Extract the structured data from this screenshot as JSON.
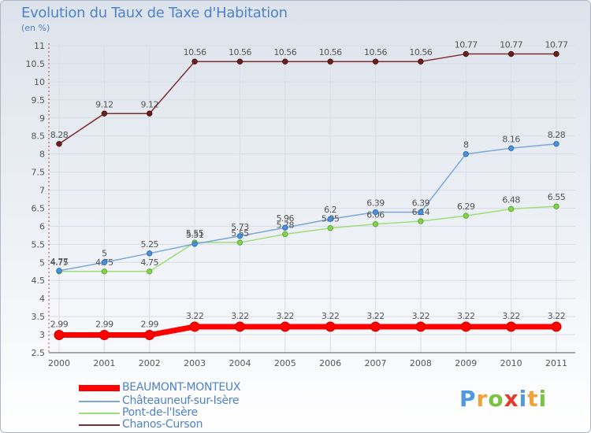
{
  "title": "Evolution du Taux de Taxe d'Habitation",
  "subtitle": "(en %)",
  "brand": {
    "letters": [
      "P",
      "r",
      "o",
      "x",
      "i",
      "t",
      "i"
    ],
    "colors": [
      "#4f9adf",
      "#f0a33a",
      "#7cc242",
      "#e23b2e",
      "#4f9adf",
      "#f0a33a",
      "#7cc242"
    ]
  },
  "chart_data": {
    "type": "line",
    "title": "Evolution du Taux de Taxe d'Habitation",
    "subtitle": "(en %)",
    "xlabel": "",
    "ylabel": "",
    "categories": [
      "2000",
      "2001",
      "2002",
      "2003",
      "2004",
      "2005",
      "2006",
      "2007",
      "2008",
      "2009",
      "2010",
      "2011"
    ],
    "ylim": [
      2.5,
      11
    ],
    "yticks": [
      "2.5",
      "3",
      "3.5",
      "4",
      "4.5",
      "5",
      "5.5",
      "6",
      "6.5",
      "7",
      "7.5",
      "8",
      "8.5",
      "9",
      "9.5",
      "10",
      "10.5",
      "11"
    ],
    "grid": true,
    "legend_position": "bottom-left",
    "series": [
      {
        "name": "BEAUMONT-MONTEUX",
        "color": "#ff0000",
        "values": [
          2.99,
          2.99,
          2.99,
          3.22,
          3.22,
          3.22,
          3.22,
          3.22,
          3.22,
          3.22,
          3.22,
          3.22
        ],
        "labels": [
          "2.99",
          "2.99",
          "2.99",
          "3.22",
          "3.22",
          "3.22",
          "3.22",
          "3.22",
          "3.22",
          "3.22",
          "3.22",
          "3.22"
        ]
      },
      {
        "name": "Châteauneuf-sur-Isère",
        "color": "#7ba7d9",
        "values": [
          4.77,
          5,
          5.25,
          5.51,
          5.73,
          5.96,
          6.2,
          6.39,
          6.39,
          8,
          8.16,
          8.28
        ],
        "labels": [
          "4.77",
          "5",
          "5.25",
          "5.51",
          "5.73",
          "5.96",
          "6.2",
          "6.39",
          "6.39",
          "8",
          "8.16",
          "8.28"
        ]
      },
      {
        "name": "Pont-de-l'Isère",
        "color": "#9fde7a",
        "values": [
          4.75,
          4.75,
          4.75,
          5.55,
          5.55,
          5.78,
          5.95,
          6.06,
          6.14,
          6.29,
          6.48,
          6.55
        ],
        "labels": [
          "4.75",
          "4.75",
          "4.75",
          "5.55",
          "5.55",
          "5.78",
          "5.95",
          "6.06",
          "6.14",
          "6.29",
          "6.48",
          "6.55"
        ]
      },
      {
        "name": "Chanos-Curson",
        "color": "#7a2e2e",
        "values": [
          8.28,
          9.12,
          9.12,
          10.56,
          10.56,
          10.56,
          10.56,
          10.56,
          10.56,
          10.77,
          10.77,
          10.77
        ],
        "labels": [
          "8.28",
          "9.12",
          "9.12",
          "10.56",
          "10.56",
          "10.56",
          "10.56",
          "10.56",
          "10.56",
          "10.77",
          "10.77",
          "10.77"
        ]
      }
    ]
  }
}
